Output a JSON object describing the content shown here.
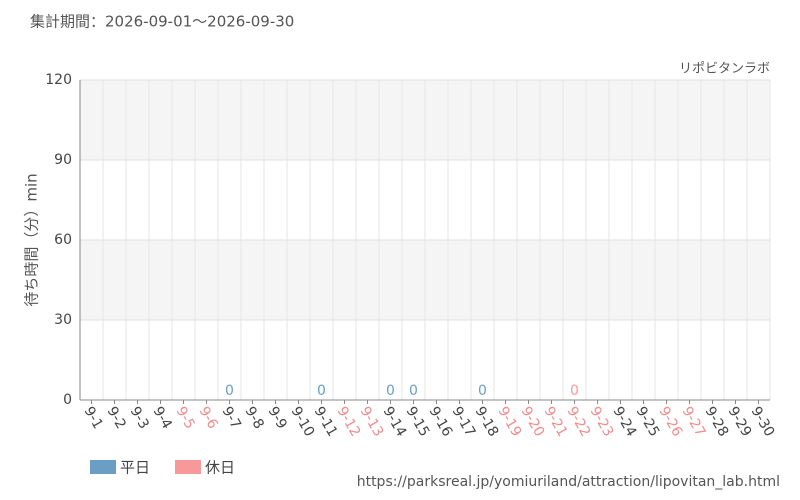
{
  "chart_data": {
    "type": "bar",
    "title": "集計期間：2026-09-01～2026-09-30",
    "source_name": "リポビタンラボ",
    "y_label": "待ち時間（分）min",
    "url": "https://parksreal.jp/yomiuriland/attraction/lipovitan_lab.html",
    "categories": [
      "9-1",
      "9-2",
      "9-3",
      "9-4",
      "9-5",
      "9-6",
      "9-7",
      "9-8",
      "9-9",
      "9-10",
      "9-11",
      "9-12",
      "9-13",
      "9-14",
      "9-15",
      "9-16",
      "9-17",
      "9-18",
      "9-19",
      "9-20",
      "9-21",
      "9-22",
      "9-23",
      "9-24",
      "9-25",
      "9-26",
      "9-27",
      "9-28",
      "9-29",
      "9-30"
    ],
    "category_colors": [
      "#444",
      "#444",
      "#444",
      "#444",
      "#f28b8b",
      "#f28b8b",
      "#444",
      "#444",
      "#444",
      "#444",
      "#444",
      "#f28b8b",
      "#f28b8b",
      "#444",
      "#444",
      "#444",
      "#444",
      "#444",
      "#f28b8b",
      "#f28b8b",
      "#f28b8b",
      "#f28b8b",
      "#f28b8b",
      "#444",
      "#444",
      "#f28b8b",
      "#f28b8b",
      "#444",
      "#444",
      "#444"
    ],
    "series": [
      {
        "name": "平日",
        "color": "#6a9ec5",
        "values": [
          null,
          null,
          null,
          null,
          null,
          null,
          0,
          null,
          null,
          null,
          0,
          null,
          null,
          0,
          0,
          null,
          null,
          0,
          null,
          null,
          null,
          null,
          null,
          null,
          null,
          null,
          null,
          null,
          null,
          null
        ]
      },
      {
        "name": "休日",
        "color": "#f7989a",
        "values": [
          null,
          null,
          null,
          null,
          null,
          null,
          null,
          null,
          null,
          null,
          null,
          null,
          null,
          null,
          null,
          null,
          null,
          null,
          null,
          null,
          null,
          0,
          null,
          null,
          null,
          null,
          null,
          null,
          null,
          null
        ]
      }
    ],
    "ylim": [
      0,
      120
    ],
    "yticks": [
      0,
      30,
      60,
      90,
      120
    ],
    "grid": true
  }
}
